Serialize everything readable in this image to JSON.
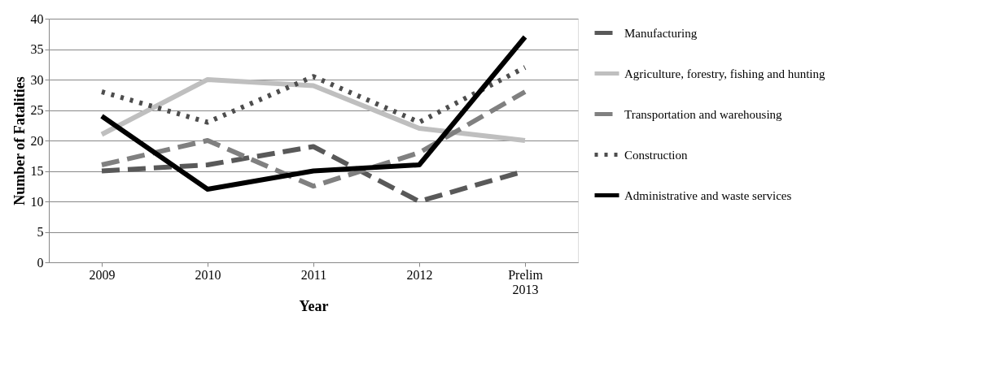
{
  "chart_data": {
    "type": "line",
    "xlabel": "Year",
    "ylabel": "Number of Fatalities",
    "categories": [
      "2009",
      "2010",
      "2011",
      "2012",
      "Prelim 2013"
    ],
    "ylim": [
      0,
      40
    ],
    "yticks": [
      0,
      5,
      10,
      15,
      20,
      25,
      30,
      35,
      40
    ],
    "grid": "y",
    "legend": "right",
    "marker": "none",
    "series": [
      {
        "name": "Manufacturing",
        "color": "#595959",
        "line_style": "dashed",
        "values": [
          15,
          16,
          19,
          10,
          15
        ]
      },
      {
        "name": "Agriculture, forestry, fishing and hunting",
        "color": "#bfbfbf",
        "line_style": "solid",
        "values": [
          21,
          30,
          29,
          22,
          20
        ]
      },
      {
        "name": "Transportation and warehousing",
        "color": "#808080",
        "line_style": "dashed",
        "values": [
          16,
          20,
          12.5,
          18,
          28
        ]
      },
      {
        "name": "Construction",
        "color": "#4d4d4d",
        "line_style": "dotted",
        "values": [
          28,
          23,
          30.5,
          23,
          32
        ]
      },
      {
        "name": "Administrative and waste services",
        "color": "#000000",
        "line_style": "solid",
        "values": [
          24,
          12,
          15,
          16,
          37
        ]
      }
    ]
  }
}
